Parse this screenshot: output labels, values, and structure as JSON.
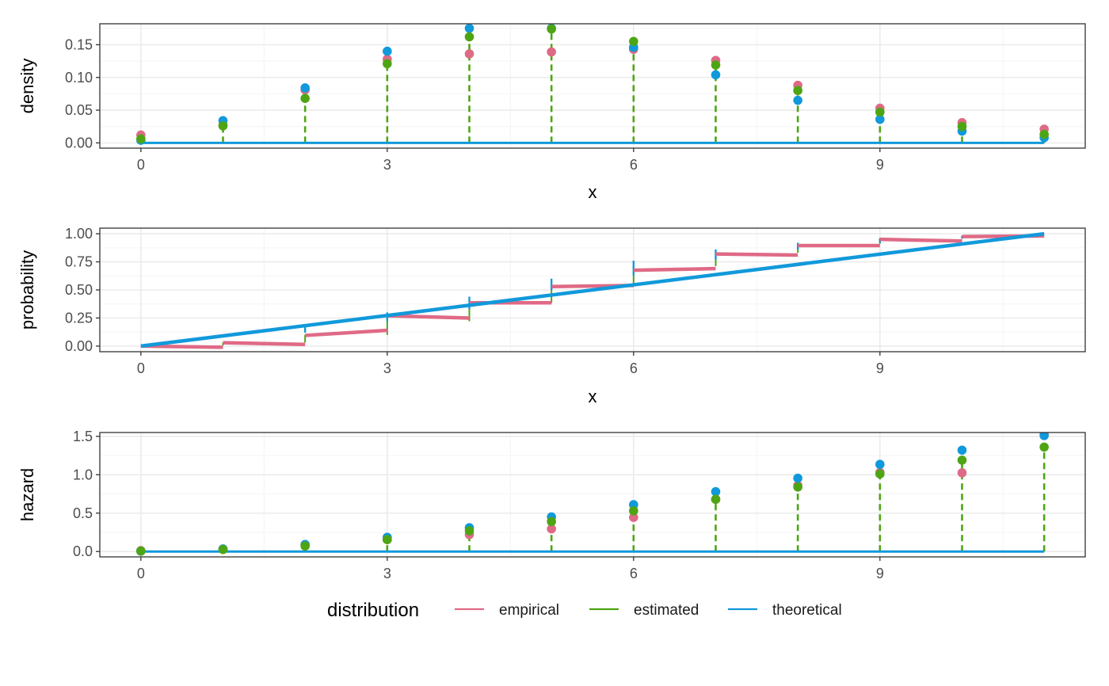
{
  "colors": {
    "empirical": "#df6a86",
    "estimated": "#4ea514",
    "theoretical": "#1199db",
    "panel_border": "#333333",
    "grid_major": "#ebebeb",
    "grid_minor": "#f4f4f4"
  },
  "legend": {
    "title": "distribution",
    "entries": [
      {
        "key": "empirical",
        "label": "empirical"
      },
      {
        "key": "estimated",
        "label": "estimated"
      },
      {
        "key": "theoretical",
        "label": "theoretical"
      }
    ],
    "position": "bottom"
  },
  "chart_data": [
    {
      "type": "scatter",
      "panel": "density",
      "ylabel": "density",
      "xlabel": "x",
      "xlim": [
        -0.5,
        11.5
      ],
      "ylim": [
        -0.008,
        0.182
      ],
      "x_ticks": [
        0,
        3,
        6,
        9
      ],
      "y_ticks": [
        0.0,
        0.05,
        0.1,
        0.15
      ],
      "y_tick_labels": [
        "0.00",
        "0.05",
        "0.10",
        "0.15"
      ],
      "grid": true,
      "x": [
        0,
        1,
        2,
        3,
        4,
        5,
        6,
        7,
        8,
        9,
        10,
        11
      ],
      "series": [
        {
          "name": "empirical",
          "values": [
            0.012,
            0.027,
            0.081,
            0.128,
            0.136,
            0.139,
            0.143,
            0.126,
            0.088,
            0.053,
            0.031,
            0.021
          ]
        },
        {
          "name": "estimated",
          "values": [
            0.006,
            0.026,
            0.068,
            0.121,
            0.162,
            0.174,
            0.155,
            0.119,
            0.08,
            0.047,
            0.025,
            0.013
          ]
        },
        {
          "name": "theoretical",
          "values": [
            0.004,
            0.034,
            0.084,
            0.14,
            0.175,
            0.175,
            0.146,
            0.104,
            0.065,
            0.036,
            0.018,
            0.008
          ]
        }
      ]
    },
    {
      "type": "line",
      "panel": "probability",
      "ylabel": "probability",
      "xlabel": "x",
      "xlim": [
        -0.5,
        11.5
      ],
      "ylim": [
        -0.05,
        1.05
      ],
      "x_ticks": [
        0,
        3,
        6,
        9
      ],
      "y_ticks": [
        0.0,
        0.25,
        0.5,
        0.75,
        1.0
      ],
      "y_tick_labels": [
        "0.00",
        "0.25",
        "0.50",
        "0.75",
        "1.00"
      ],
      "grid": true,
      "series": [
        {
          "name": "empirical",
          "steps": [
            {
              "x0": 0,
              "x1": 1,
              "y0": 0.0,
              "y1": -0.01
            },
            {
              "x0": 1,
              "x1": 2,
              "y0": 0.03,
              "y1": 0.015
            },
            {
              "x0": 2,
              "x1": 3,
              "y0": 0.095,
              "y1": 0.14
            },
            {
              "x0": 3,
              "x1": 4,
              "y0": 0.27,
              "y1": 0.25
            },
            {
              "x0": 4,
              "x1": 5,
              "y0": 0.385,
              "y1": 0.385
            },
            {
              "x0": 5,
              "x1": 6,
              "y0": 0.53,
              "y1": 0.54
            },
            {
              "x0": 6,
              "x1": 7,
              "y0": 0.675,
              "y1": 0.69
            },
            {
              "x0": 7,
              "x1": 8,
              "y0": 0.82,
              "y1": 0.81
            },
            {
              "x0": 8,
              "x1": 9,
              "y0": 0.895,
              "y1": 0.895
            },
            {
              "x0": 9,
              "x1": 10,
              "y0": 0.95,
              "y1": 0.935
            },
            {
              "x0": 10,
              "x1": 11,
              "y0": 0.975,
              "y1": 0.98
            }
          ]
        },
        {
          "name": "estimated",
          "steps": [
            {
              "x0": 0,
              "x1": 1,
              "y0": 0.006,
              "y1": 0.006
            },
            {
              "x0": 1,
              "x1": 2,
              "y0": 0.032,
              "y1": 0.032
            },
            {
              "x0": 2,
              "x1": 3,
              "y0": 0.1,
              "y1": 0.1
            },
            {
              "x0": 3,
              "x1": 4,
              "y0": 0.221,
              "y1": 0.221
            },
            {
              "x0": 4,
              "x1": 5,
              "y0": 0.383,
              "y1": 0.383
            },
            {
              "x0": 5,
              "x1": 6,
              "y0": 0.557,
              "y1": 0.557
            },
            {
              "x0": 6,
              "x1": 7,
              "y0": 0.712,
              "y1": 0.712
            },
            {
              "x0": 7,
              "x1": 8,
              "y0": 0.831,
              "y1": 0.831
            },
            {
              "x0": 8,
              "x1": 9,
              "y0": 0.911,
              "y1": 0.911
            },
            {
              "x0": 9,
              "x1": 10,
              "y0": 0.958,
              "y1": 0.958
            },
            {
              "x0": 10,
              "x1": 11,
              "y0": 0.983,
              "y1": 0.983
            }
          ]
        },
        {
          "name": "theoretical",
          "segments": [
            {
              "x0": 0,
              "x1": 11,
              "y0": 0.0,
              "y1": 1.0
            }
          ],
          "risers": [
            {
              "x": 2,
              "y0": 0.12,
              "y1": 0.18
            },
            {
              "x": 3,
              "y0": 0.22,
              "y1": 0.3
            },
            {
              "x": 4,
              "y0": 0.33,
              "y1": 0.44
            },
            {
              "x": 5,
              "y0": 0.5,
              "y1": 0.6
            },
            {
              "x": 6,
              "y0": 0.63,
              "y1": 0.76
            },
            {
              "x": 7,
              "y0": 0.77,
              "y1": 0.86
            },
            {
              "x": 8,
              "y0": 0.86,
              "y1": 0.92
            },
            {
              "x": 9,
              "y0": 0.92,
              "y1": 0.96
            },
            {
              "x": 10,
              "y0": 0.955,
              "y1": 0.98
            }
          ]
        }
      ]
    },
    {
      "type": "scatter",
      "panel": "hazard",
      "ylabel": "hazard",
      "xlabel": "",
      "xlim": [
        -0.5,
        11.5
      ],
      "ylim": [
        -0.07,
        1.55
      ],
      "x_ticks": [
        0,
        3,
        6,
        9
      ],
      "y_ticks": [
        0.0,
        0.5,
        1.0,
        1.5
      ],
      "y_tick_labels": [
        "0.0",
        "0.5",
        "1.0",
        "1.5"
      ],
      "grid": true,
      "x": [
        0,
        1,
        2,
        3,
        4,
        5,
        6,
        7,
        8,
        9,
        10,
        11
      ],
      "series": [
        {
          "name": "empirical",
          "values": [
            0.012,
            0.028,
            0.088,
            0.155,
            0.22,
            0.295,
            0.445,
            0.68,
            0.86,
            1.03,
            1.025,
            1.53
          ]
        },
        {
          "name": "estimated",
          "values": [
            0.006,
            0.026,
            0.071,
            0.155,
            0.27,
            0.39,
            0.53,
            0.68,
            0.84,
            1.01,
            1.19,
            1.36
          ]
        },
        {
          "name": "theoretical",
          "values": [
            0.004,
            0.034,
            0.092,
            0.185,
            0.31,
            0.45,
            0.61,
            0.78,
            0.955,
            1.135,
            1.32,
            1.51
          ]
        }
      ]
    }
  ]
}
